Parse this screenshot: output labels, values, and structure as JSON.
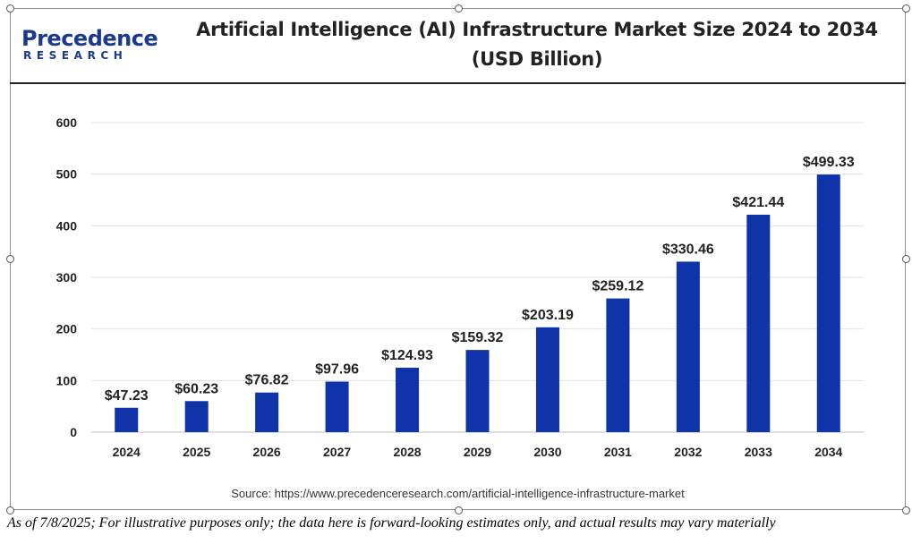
{
  "logo": {
    "line1": "Precedence",
    "line2": "RESEARCH"
  },
  "chart_data": {
    "type": "bar",
    "title": "Artificial Intelligence (AI) Infrastructure Market Size 2024 to 2034 (USD Billion)",
    "categories": [
      "2024",
      "2025",
      "2026",
      "2027",
      "2028",
      "2029",
      "2030",
      "2031",
      "2032",
      "2033",
      "2034"
    ],
    "values": [
      47.23,
      60.23,
      76.82,
      97.96,
      124.93,
      159.32,
      203.19,
      259.12,
      330.46,
      421.44,
      499.33
    ],
    "data_labels": [
      "$47.23",
      "$60.23",
      "$76.82",
      "$97.96",
      "$124.93",
      "$159.32",
      "$203.19",
      "$259.12",
      "$330.46",
      "$421.44",
      "$499.33"
    ],
    "yticks": [
      "0",
      "100",
      "200",
      "300",
      "400",
      "500",
      "600"
    ],
    "ylim": [
      0,
      600
    ],
    "bar_color": "#0f33a8",
    "grid": true,
    "legend": "none"
  },
  "source": "Source: https://www.precedenceresearch.com/artificial-intelligence-infrastructure-market",
  "disclaimer": "As of 7/8/2025; For illustrative purposes only; the data here is forward-looking estimates only, and actual results may vary materially"
}
